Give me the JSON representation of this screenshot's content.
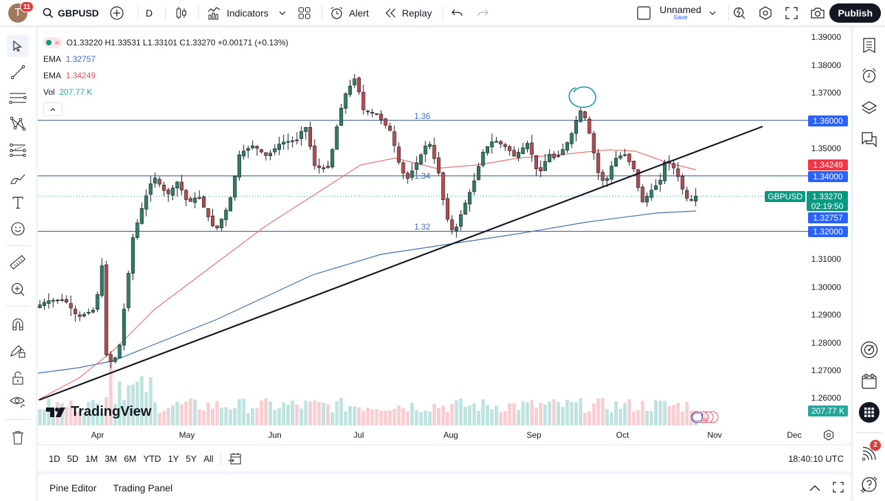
{
  "topbar": {
    "avatar_letter": "T",
    "notifications": "11",
    "symbol": "GBPUSD",
    "interval": "D",
    "indicators_label": "Indicators",
    "alert_label": "Alert",
    "replay_label": "Replay",
    "layout_name": "Unnamed",
    "layout_save": "Save",
    "publish_label": "Publish"
  },
  "legend": {
    "ohlc": "O1.33220 H1.33531 L1.33101 C1.33270 +0.00171 (+0.13%)",
    "ema1_label": "EMA",
    "ema1_value": "1.32757",
    "ema2_label": "EMA",
    "ema2_value": "1.34249",
    "vol_label": "Vol",
    "vol_value": "207.77 K"
  },
  "price_axis": {
    "ticks": [
      "1.39000",
      "1.38000",
      "1.37000",
      "1.36000",
      "1.35000",
      "1.34000",
      "1.33000",
      "1.32000",
      "1.31000",
      "1.30000",
      "1.29000",
      "1.28000",
      "1.27000",
      "1.26000"
    ],
    "labels": {
      "level_136": "1.36000",
      "ema_red": "1.34249",
      "level_134": "1.34000",
      "symbol_tag": "GBPUSD",
      "last_price": "1.33270",
      "countdown": "02:19:50",
      "ema_blue": "1.32757",
      "level_132": "1.32000",
      "volume": "207.77 K"
    }
  },
  "horizontal_lines": [
    {
      "label": "1.36",
      "price": 1.36
    },
    {
      "label": "1.34",
      "price": 1.34
    },
    {
      "label": "1.32",
      "price": 1.32
    }
  ],
  "time_axis": [
    "Apr",
    "May",
    "Jun",
    "Jul",
    "Aug",
    "Sep",
    "Oct",
    "Nov",
    "Dec"
  ],
  "range_bar": {
    "ranges": [
      "1D",
      "5D",
      "1M",
      "3M",
      "6M",
      "YTD",
      "1Y",
      "5Y",
      "All"
    ],
    "clock": "18:40:10 UTC"
  },
  "bottom_panel": {
    "tabs": [
      "Pine Editor",
      "Trading Panel"
    ]
  },
  "right_toolbar": {
    "notification_count": "2"
  },
  "colors": {
    "up": "#2e7d64",
    "down": "#b54a4f",
    "ema_fast": "#e57373",
    "ema_slow": "#3f6cb5",
    "hline": "#2a4b7c",
    "label_blue": "#2962ff",
    "label_red": "#f23645",
    "label_green": "#089981",
    "annotation": "#2ba3a9"
  },
  "chart_data": {
    "type": "candlestick",
    "title": "GBPUSD D",
    "ylim": [
      1.255,
      1.395
    ],
    "x_labels": [
      "Apr",
      "May",
      "Jun",
      "Jul",
      "Aug",
      "Sep",
      "Oct",
      "Nov",
      "Dec"
    ],
    "trendline": {
      "from": [
        57,
        582
      ],
      "to": [
        1110,
        184
      ]
    },
    "annotation": "circle around September high near 1.3720"
  },
  "brand": {
    "watermark": "TradingView"
  }
}
